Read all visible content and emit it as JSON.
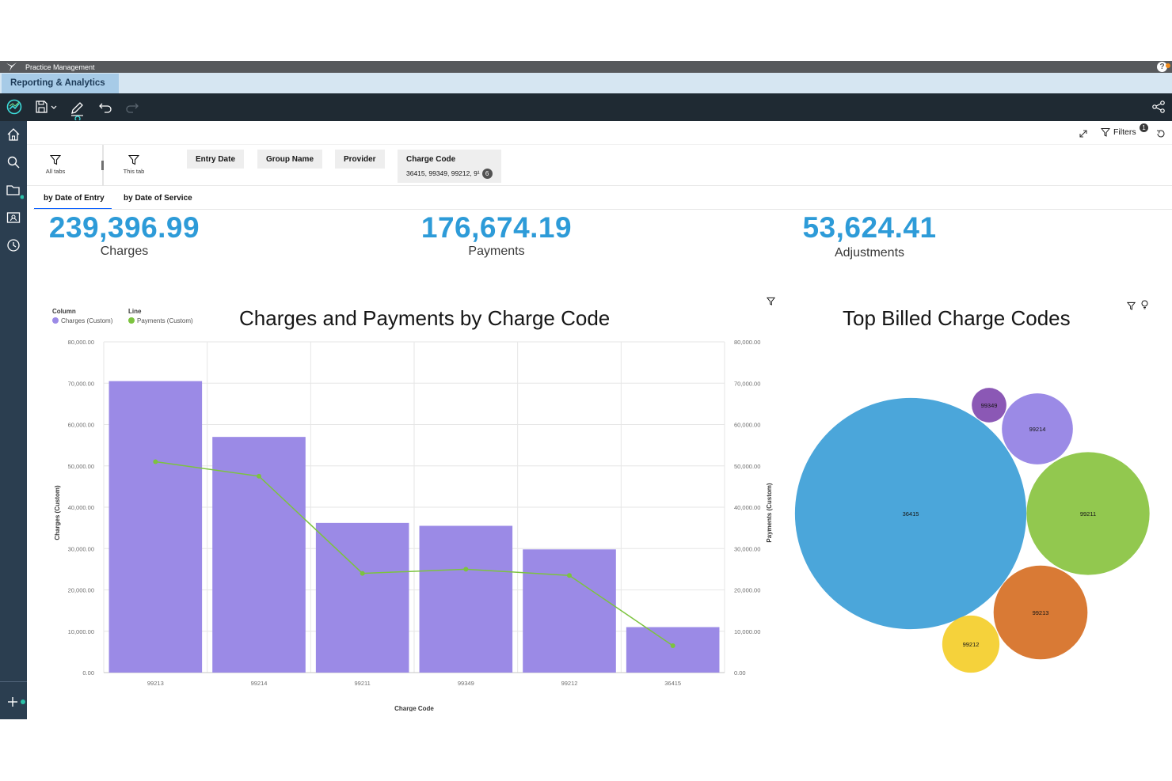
{
  "titlebar": {
    "app_name": "Practice Management",
    "help": "?"
  },
  "app_tab": {
    "label": "Reporting & Analytics"
  },
  "header": {
    "filters_label": "Filters",
    "filters_count": "1"
  },
  "filter_scope": {
    "all_tabs": "All tabs",
    "this_tab": "This tab"
  },
  "filters": [
    {
      "label": "Entry Date"
    },
    {
      "label": "Group Name"
    },
    {
      "label": "Provider"
    },
    {
      "label": "Charge Code",
      "value": "36415, 99349, 99212, 9¹",
      "count": "6"
    }
  ],
  "tabs": [
    {
      "label": "by Date of Entry",
      "active": true
    },
    {
      "label": "by Date of Service",
      "active": false
    }
  ],
  "kpis": [
    {
      "value": "239,396.99",
      "label": "Charges"
    },
    {
      "value": "176,674.19",
      "label": "Payments"
    },
    {
      "value": "53,624.41",
      "label": "Adjustments"
    }
  ],
  "colors": {
    "accent": "#2d9bd8",
    "bar": "#9b8ae6",
    "line": "#7cc33f"
  },
  "chart_data": [
    {
      "type": "bar",
      "title": "Charges and Payments by Charge Code",
      "xlabel": "Charge Code",
      "ylabel": "Charges (Custom)",
      "y2label": "Payments (Custom)",
      "legend": {
        "column_title": "Column",
        "column_series": "Charges (Custom)",
        "line_title": "Line",
        "line_series": "Payments (Custom)"
      },
      "categories": [
        "99213",
        "99214",
        "99211",
        "99349",
        "99212",
        "36415"
      ],
      "series": [
        {
          "name": "Charges (Custom)",
          "kind": "column",
          "values": [
            70500,
            57000,
            36200,
            35500,
            29800,
            11000
          ]
        },
        {
          "name": "Payments (Custom)",
          "kind": "line",
          "values": [
            51000,
            47500,
            24000,
            25000,
            23500,
            6500
          ]
        }
      ],
      "ylim": [
        0,
        80000
      ],
      "yticks": [
        "0.00",
        "10,000.00",
        "20,000.00",
        "30,000.00",
        "40,000.00",
        "50,000.00",
        "60,000.00",
        "70,000.00",
        "80,000.00"
      ],
      "grid": true,
      "legend_position": "top-left"
    },
    {
      "type": "bubble",
      "title": "Top Billed Charge Codes",
      "bubbles": [
        {
          "label": "36415",
          "size": 85,
          "color": "#4ba6da"
        },
        {
          "label": "99211",
          "size": 24,
          "color": "#92c84f"
        },
        {
          "label": "99213",
          "size": 14,
          "color": "#d97a35"
        },
        {
          "label": "99214",
          "size": 8,
          "color": "#9b8ae6"
        },
        {
          "label": "99212",
          "size": 5.2,
          "color": "#f5d23b"
        },
        {
          "label": "99349",
          "size": 1.9,
          "color": "#8b58b5"
        }
      ]
    }
  ]
}
